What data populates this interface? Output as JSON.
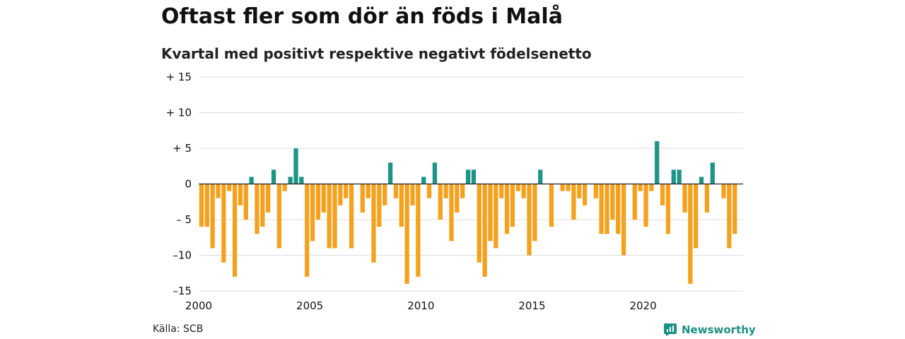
{
  "chart_data": {
    "type": "bar",
    "title": "Oftast fler som dör än föds i Malå",
    "subtitle": "Kvartal med positivt respektive negativt födelsenetto",
    "xlabel": "",
    "ylabel": "",
    "ylim": [
      -15,
      15
    ],
    "y_ticks": [
      15,
      10,
      5,
      0,
      -5,
      -10,
      -15
    ],
    "y_tick_labels": [
      "+ 15",
      "+ 10",
      "+  5",
      "0",
      "– 5",
      "–10",
      "–15"
    ],
    "x_start_year": 2000,
    "x_end_year": 2024.5,
    "x_ticks": [
      2000,
      2005,
      2010,
      2015,
      2020
    ],
    "x_tick_labels": [
      "2000",
      "2005",
      "2010",
      "2015",
      "2020"
    ],
    "grid": true,
    "colors": {
      "positive": "#1e9486",
      "negative": "#f4a11d",
      "grid": "#dddddd",
      "zero": "#222222"
    },
    "values": [
      -6,
      -6,
      -9,
      -2,
      -11,
      -1,
      -13,
      -3,
      -5,
      1,
      -7,
      -6,
      -4,
      2,
      -9,
      -1,
      1,
      5,
      1,
      -13,
      -8,
      -5,
      -4,
      -9,
      -9,
      -3,
      -2,
      -9,
      0,
      -4,
      -2,
      -11,
      -6,
      -3,
      3,
      -2,
      -6,
      -14,
      -3,
      -13,
      1,
      -2,
      3,
      -5,
      -2,
      -8,
      -4,
      -2,
      2,
      2,
      -11,
      -13,
      -8,
      -9,
      -2,
      -7,
      -6,
      -1,
      -2,
      -10,
      -8,
      2,
      0,
      -6,
      0,
      -1,
      -1,
      -5,
      -2,
      -3,
      0,
      -2,
      -7,
      -7,
      -5,
      -7,
      -10,
      0,
      -5,
      -1,
      -6,
      -1,
      6,
      -3,
      -7,
      2,
      2,
      -4,
      -14,
      -9,
      1,
      -4,
      3,
      0,
      -2,
      -9,
      -7
    ]
  },
  "footer": {
    "source": "Källa: SCB",
    "brand": "Newsworthy",
    "brand_icon": "newsworthy-logo-icon"
  }
}
